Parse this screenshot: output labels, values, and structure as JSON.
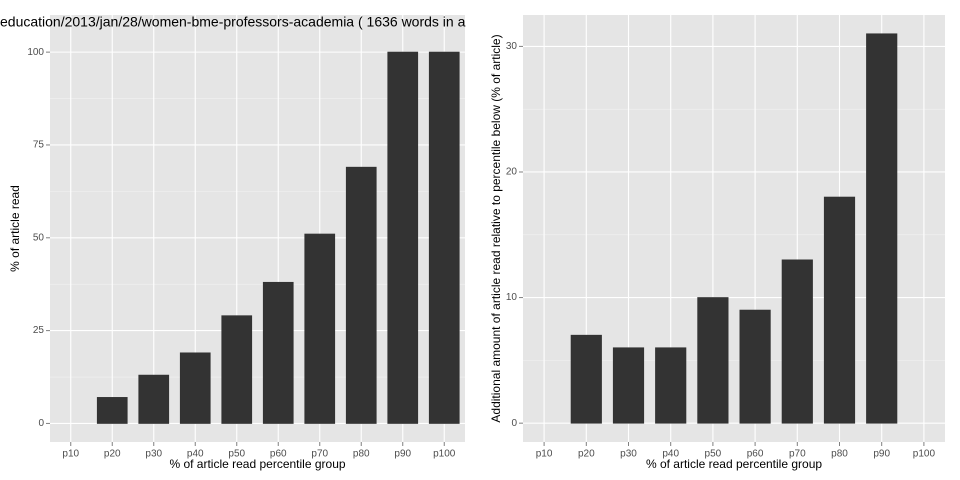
{
  "chart_data": [
    {
      "type": "bar",
      "title": "education/2013/jan/28/women-bme-professors-academia ( 1636 words in a",
      "x_label": "% of article read percentile group",
      "y_label": "% of article read",
      "categories": [
        "p10",
        "p20",
        "p30",
        "p40",
        "p50",
        "p60",
        "p70",
        "p80",
        "p90",
        "p100"
      ],
      "values": [
        0,
        7,
        13,
        19,
        29,
        38,
        51,
        69,
        100,
        100
      ],
      "color": "#333333",
      "ylim": [
        -5,
        110
      ],
      "yticks": [
        0,
        25,
        50,
        75,
        100
      ],
      "grid": true
    },
    {
      "type": "bar",
      "x_label": "% of article read percentile group",
      "y_label": "Additional amount of article read relative to percentile below (% of article)",
      "categories": [
        "p10",
        "p20",
        "p30",
        "p40",
        "p50",
        "p60",
        "p70",
        "p80",
        "p90",
        "p100"
      ],
      "values": [
        0,
        7,
        6,
        6,
        10,
        9,
        13,
        18,
        31,
        0
      ],
      "color": "#333333",
      "ylim": [
        -1.5,
        32.5
      ],
      "yticks": [
        0,
        10,
        20,
        30
      ],
      "grid": true
    }
  ]
}
